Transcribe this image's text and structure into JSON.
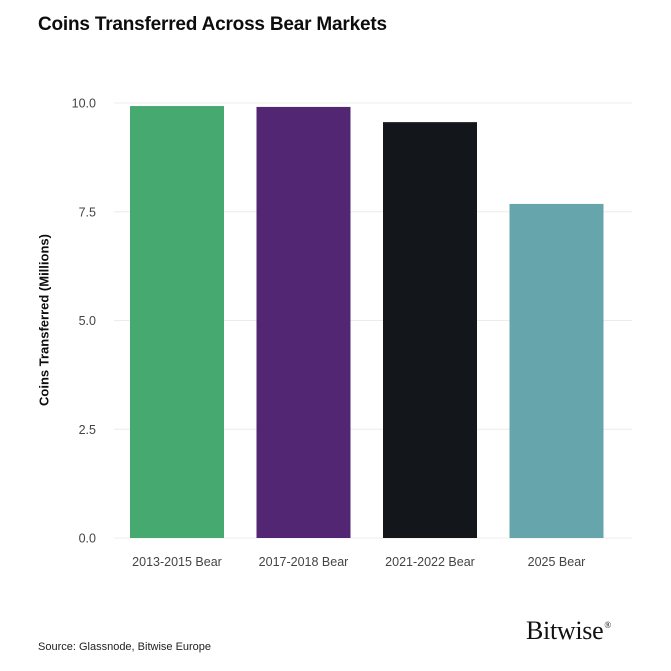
{
  "title": "Coins Transferred Across Bear Markets",
  "source": "Source: Glassnode, Bitwise Europe",
  "logo": {
    "text": "Bitwise",
    "mark": "®"
  },
  "chart_data": {
    "type": "bar",
    "title": "Coins Transferred Across Bear Markets",
    "xlabel": "",
    "ylabel": "Coins Transferred (Millions)",
    "categories": [
      "2013-2015 Bear",
      "2017-2018 Bear",
      "2021-2022 Bear",
      "2025 Bear"
    ],
    "values": [
      9.93,
      9.91,
      9.56,
      7.68
    ],
    "colors": [
      "#46a96f",
      "#522672",
      "#13171b",
      "#67a5ad"
    ],
    "ylim": [
      0,
      10
    ],
    "yticks": [
      "0.0",
      "2.5",
      "5.0",
      "7.5",
      "10.0"
    ],
    "ytick_values": [
      0,
      2.5,
      5,
      7.5,
      10
    ],
    "grid": true,
    "legend": "none"
  }
}
